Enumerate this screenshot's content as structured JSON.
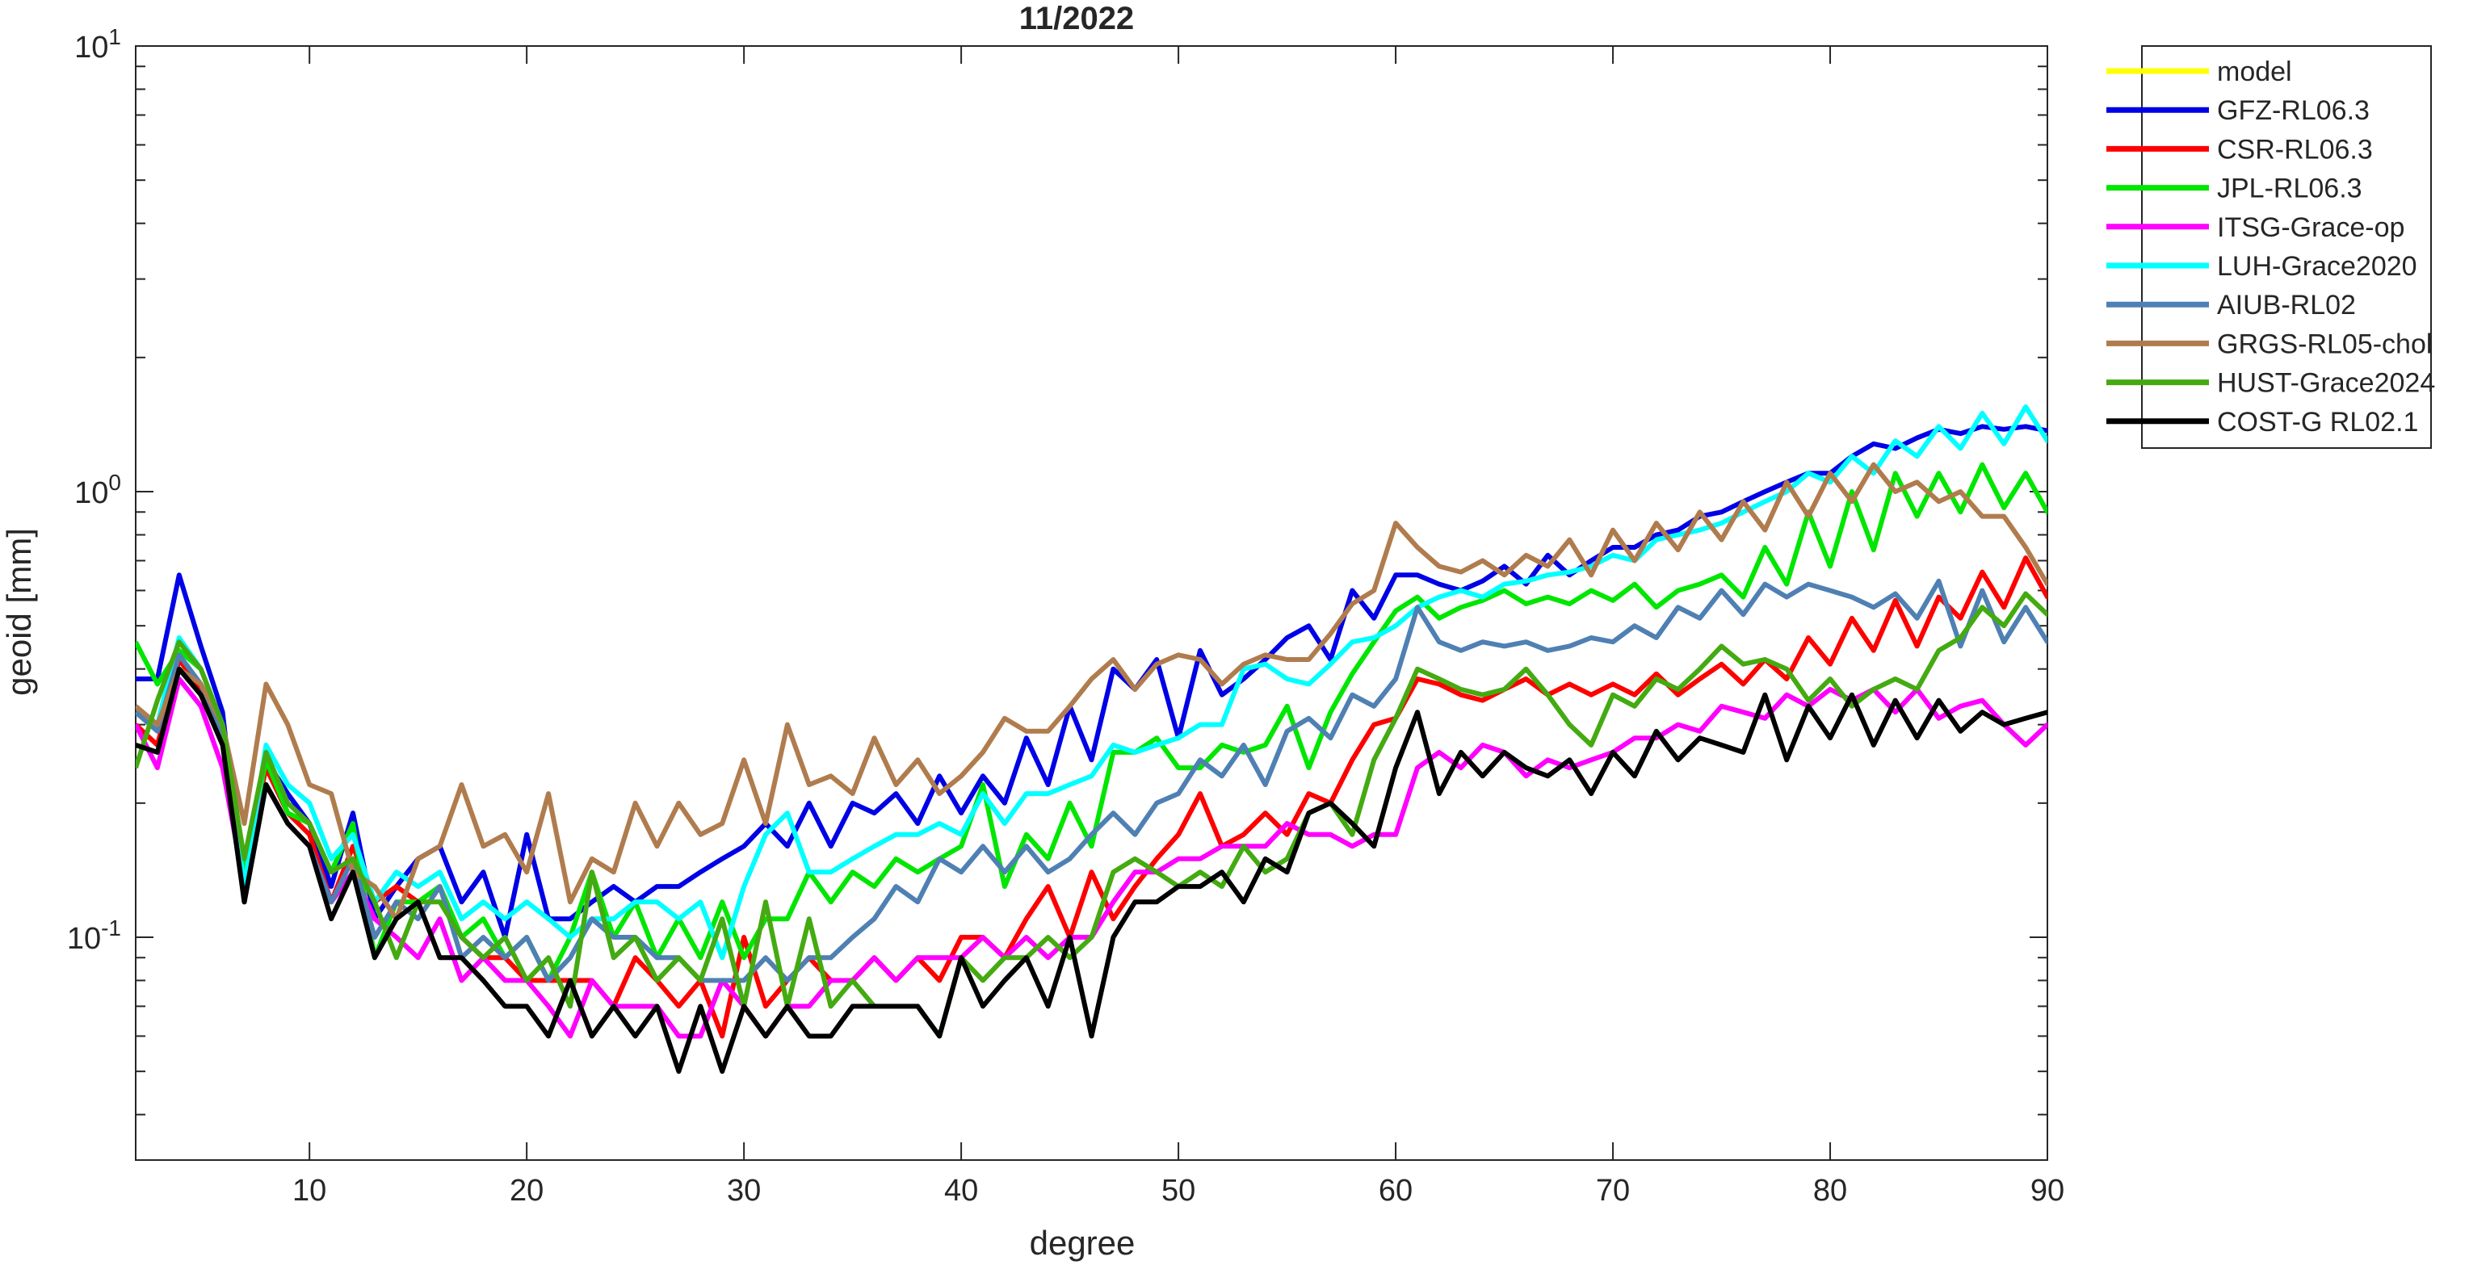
{
  "chart_data": {
    "type": "line",
    "title": "11/2022",
    "xlabel": "degree",
    "ylabel": "geoid [mm]",
    "xlim": [
      2,
      90
    ],
    "ylim": [
      0.03,
      10
    ],
    "yscale": "log",
    "grid": false,
    "legend_location": "outside-top-right",
    "x_ticks": [
      10,
      20,
      30,
      40,
      50,
      60,
      70,
      80,
      90
    ],
    "x_tick_labels": [
      "10",
      "20",
      "30",
      "40",
      "50",
      "60",
      "70",
      "80",
      "90"
    ],
    "y_tick_labels": [
      {
        "value": 0.1,
        "base": "10",
        "exp": "-1"
      },
      {
        "value": 1,
        "base": "10",
        "exp": "0"
      },
      {
        "value": 10,
        "base": "10",
        "exp": "1"
      }
    ],
    "x_start": 2,
    "series": [
      {
        "name": "model",
        "color": "#ffff00",
        "values": []
      },
      {
        "name": "GFZ-RL06.3",
        "color": "#0000e6",
        "values": [
          0.38,
          0.38,
          0.65,
          0.45,
          0.32,
          0.12,
          0.25,
          0.21,
          0.18,
          0.13,
          0.19,
          0.11,
          0.13,
          0.15,
          0.16,
          0.12,
          0.14,
          0.1,
          0.17,
          0.11,
          0.11,
          0.12,
          0.13,
          0.12,
          0.13,
          0.13,
          0.14,
          0.15,
          0.16,
          0.18,
          0.16,
          0.2,
          0.16,
          0.2,
          0.19,
          0.21,
          0.18,
          0.23,
          0.19,
          0.23,
          0.2,
          0.28,
          0.22,
          0.33,
          0.25,
          0.4,
          0.36,
          0.42,
          0.28,
          0.44,
          0.35,
          0.38,
          0.42,
          0.47,
          0.5,
          0.42,
          0.6,
          0.52,
          0.65,
          0.65,
          0.62,
          0.6,
          0.63,
          0.68,
          0.62,
          0.72,
          0.65,
          0.7,
          0.75,
          0.75,
          0.8,
          0.82,
          0.88,
          0.9,
          0.95,
          1.0,
          1.05,
          1.1,
          1.1,
          1.2,
          1.28,
          1.25,
          1.32,
          1.38,
          1.35,
          1.4,
          1.38,
          1.4,
          1.37
        ]
      },
      {
        "name": "CSR-RL06.3",
        "color": "#ff0000",
        "values": [
          0.3,
          0.27,
          0.42,
          0.36,
          0.28,
          0.14,
          0.24,
          0.19,
          0.17,
          0.12,
          0.16,
          0.12,
          0.13,
          0.12,
          0.13,
          0.1,
          0.09,
          0.09,
          0.08,
          0.08,
          0.08,
          0.08,
          0.07,
          0.09,
          0.08,
          0.07,
          0.08,
          0.06,
          0.1,
          0.07,
          0.08,
          0.09,
          0.08,
          0.08,
          0.09,
          0.08,
          0.09,
          0.08,
          0.1,
          0.1,
          0.09,
          0.11,
          0.13,
          0.1,
          0.14,
          0.11,
          0.13,
          0.15,
          0.17,
          0.21,
          0.16,
          0.17,
          0.19,
          0.17,
          0.21,
          0.2,
          0.25,
          0.3,
          0.31,
          0.38,
          0.37,
          0.35,
          0.34,
          0.36,
          0.38,
          0.35,
          0.37,
          0.35,
          0.37,
          0.35,
          0.39,
          0.35,
          0.38,
          0.41,
          0.37,
          0.42,
          0.38,
          0.47,
          0.41,
          0.52,
          0.44,
          0.57,
          0.45,
          0.58,
          0.52,
          0.66,
          0.55,
          0.71,
          0.58,
          0.76
        ]
      },
      {
        "name": "JPL-RL06.3",
        "color": "#00e600",
        "values": [
          0.46,
          0.37,
          0.44,
          0.4,
          0.3,
          0.14,
          0.25,
          0.19,
          0.18,
          0.14,
          0.18,
          0.09,
          0.12,
          0.12,
          0.13,
          0.1,
          0.11,
          0.09,
          0.1,
          0.08,
          0.1,
          0.14,
          0.1,
          0.12,
          0.09,
          0.11,
          0.09,
          0.12,
          0.09,
          0.11,
          0.11,
          0.14,
          0.12,
          0.14,
          0.13,
          0.15,
          0.14,
          0.15,
          0.16,
          0.22,
          0.13,
          0.17,
          0.15,
          0.2,
          0.16,
          0.26,
          0.26,
          0.28,
          0.24,
          0.24,
          0.27,
          0.26,
          0.27,
          0.33,
          0.24,
          0.32,
          0.39,
          0.46,
          0.54,
          0.58,
          0.52,
          0.55,
          0.57,
          0.6,
          0.56,
          0.58,
          0.56,
          0.6,
          0.57,
          0.62,
          0.55,
          0.6,
          0.62,
          0.65,
          0.58,
          0.75,
          0.62,
          0.9,
          0.68,
          1.0,
          0.74,
          1.1,
          0.88,
          1.1,
          0.9,
          1.15,
          0.92,
          1.1,
          0.9,
          1.1
        ]
      },
      {
        "name": "ITSG-Grace-op",
        "color": "#ff00ff",
        "values": [
          0.3,
          0.24,
          0.38,
          0.33,
          0.24,
          0.13,
          0.22,
          0.18,
          0.16,
          0.12,
          0.14,
          0.11,
          0.1,
          0.09,
          0.11,
          0.08,
          0.09,
          0.08,
          0.08,
          0.07,
          0.06,
          0.08,
          0.07,
          0.07,
          0.07,
          0.06,
          0.06,
          0.08,
          0.07,
          0.06,
          0.07,
          0.07,
          0.08,
          0.08,
          0.09,
          0.08,
          0.09,
          0.09,
          0.09,
          0.1,
          0.09,
          0.1,
          0.09,
          0.1,
          0.1,
          0.12,
          0.14,
          0.14,
          0.15,
          0.15,
          0.16,
          0.16,
          0.16,
          0.18,
          0.17,
          0.17,
          0.16,
          0.17,
          0.17,
          0.24,
          0.26,
          0.24,
          0.27,
          0.26,
          0.23,
          0.25,
          0.24,
          0.25,
          0.26,
          0.28,
          0.28,
          0.3,
          0.29,
          0.33,
          0.32,
          0.31,
          0.35,
          0.33,
          0.36,
          0.34,
          0.36,
          0.32,
          0.36,
          0.31,
          0.33,
          0.34,
          0.3,
          0.27,
          0.3,
          0.29
        ]
      },
      {
        "name": "LUH-Grace2020",
        "color": "#00ffff",
        "values": [
          0.33,
          0.3,
          0.47,
          0.4,
          0.3,
          0.13,
          0.27,
          0.22,
          0.2,
          0.15,
          0.17,
          0.12,
          0.14,
          0.13,
          0.14,
          0.11,
          0.12,
          0.11,
          0.12,
          0.11,
          0.1,
          0.11,
          0.11,
          0.12,
          0.12,
          0.11,
          0.12,
          0.09,
          0.13,
          0.17,
          0.19,
          0.14,
          0.14,
          0.15,
          0.16,
          0.17,
          0.17,
          0.18,
          0.17,
          0.21,
          0.18,
          0.21,
          0.21,
          0.22,
          0.23,
          0.27,
          0.26,
          0.27,
          0.28,
          0.3,
          0.3,
          0.4,
          0.41,
          0.38,
          0.37,
          0.41,
          0.46,
          0.47,
          0.5,
          0.55,
          0.58,
          0.6,
          0.58,
          0.62,
          0.63,
          0.65,
          0.66,
          0.68,
          0.72,
          0.7,
          0.78,
          0.8,
          0.82,
          0.85,
          0.9,
          0.95,
          1.0,
          1.1,
          1.05,
          1.2,
          1.1,
          1.3,
          1.2,
          1.4,
          1.25,
          1.5,
          1.28,
          1.55,
          1.3,
          1.6,
          1.45
        ]
      },
      {
        "name": "AIUB-RL02",
        "color": "#4f80b3",
        "values": [
          0.32,
          0.29,
          0.43,
          0.37,
          0.28,
          0.12,
          0.22,
          0.18,
          0.16,
          0.12,
          0.15,
          0.1,
          0.12,
          0.11,
          0.13,
          0.09,
          0.1,
          0.09,
          0.1,
          0.08,
          0.09,
          0.11,
          0.1,
          0.1,
          0.09,
          0.09,
          0.08,
          0.08,
          0.08,
          0.09,
          0.08,
          0.09,
          0.09,
          0.1,
          0.11,
          0.13,
          0.12,
          0.15,
          0.14,
          0.16,
          0.14,
          0.16,
          0.14,
          0.15,
          0.17,
          0.19,
          0.17,
          0.2,
          0.21,
          0.25,
          0.23,
          0.27,
          0.22,
          0.29,
          0.31,
          0.28,
          0.35,
          0.33,
          0.38,
          0.55,
          0.46,
          0.44,
          0.46,
          0.45,
          0.46,
          0.44,
          0.45,
          0.47,
          0.46,
          0.5,
          0.47,
          0.55,
          0.52,
          0.6,
          0.53,
          0.62,
          0.58,
          0.62,
          0.6,
          0.58,
          0.55,
          0.59,
          0.52,
          0.63,
          0.45,
          0.6,
          0.46,
          0.55,
          0.46,
          0.44,
          0.47
        ]
      },
      {
        "name": "GRGS-RL05-chol",
        "color": "#b07c4e",
        "values": [
          0.33,
          0.3,
          0.4,
          0.37,
          0.3,
          0.18,
          0.37,
          0.3,
          0.22,
          0.21,
          0.14,
          0.13,
          0.11,
          0.15,
          0.16,
          0.22,
          0.16,
          0.17,
          0.14,
          0.21,
          0.12,
          0.15,
          0.14,
          0.2,
          0.16,
          0.2,
          0.17,
          0.18,
          0.25,
          0.18,
          0.3,
          0.22,
          0.23,
          0.21,
          0.28,
          0.22,
          0.25,
          0.21,
          0.23,
          0.26,
          0.31,
          0.29,
          0.29,
          0.33,
          0.38,
          0.42,
          0.36,
          0.41,
          0.43,
          0.42,
          0.37,
          0.41,
          0.43,
          0.42,
          0.42,
          0.48,
          0.56,
          0.6,
          0.85,
          0.75,
          0.68,
          0.66,
          0.7,
          0.65,
          0.72,
          0.68,
          0.78,
          0.65,
          0.82,
          0.7,
          0.85,
          0.74,
          0.9,
          0.78,
          0.95,
          0.82,
          1.05,
          0.88,
          1.1,
          0.95,
          1.15,
          1.0,
          1.05,
          0.95,
          1.0,
          0.88,
          0.88,
          0.75,
          0.62,
          0.6
        ]
      },
      {
        "name": "HUST-Grace2024",
        "color": "#44aa11",
        "values": [
          0.24,
          0.34,
          0.46,
          0.4,
          0.3,
          0.15,
          0.26,
          0.2,
          0.18,
          0.14,
          0.15,
          0.12,
          0.09,
          0.12,
          0.12,
          0.1,
          0.09,
          0.1,
          0.08,
          0.09,
          0.07,
          0.14,
          0.09,
          0.1,
          0.08,
          0.09,
          0.08,
          0.11,
          0.07,
          0.12,
          0.07,
          0.11,
          0.07,
          0.08,
          0.07,
          0.07,
          0.07,
          0.06,
          0.09,
          0.08,
          0.09,
          0.09,
          0.1,
          0.09,
          0.1,
          0.14,
          0.15,
          0.14,
          0.13,
          0.14,
          0.13,
          0.16,
          0.14,
          0.15,
          0.19,
          0.2,
          0.17,
          0.25,
          0.31,
          0.4,
          0.38,
          0.36,
          0.35,
          0.36,
          0.4,
          0.35,
          0.3,
          0.27,
          0.35,
          0.33,
          0.38,
          0.36,
          0.4,
          0.45,
          0.41,
          0.42,
          0.4,
          0.34,
          0.38,
          0.33,
          0.36,
          0.38,
          0.36,
          0.44,
          0.47,
          0.55,
          0.5,
          0.59,
          0.53,
          0.6,
          0.57
        ]
      },
      {
        "name": "COST-G RL02.1",
        "color": "#000000",
        "values": [
          0.27,
          0.26,
          0.4,
          0.35,
          0.27,
          0.12,
          0.22,
          0.18,
          0.16,
          0.11,
          0.14,
          0.09,
          0.11,
          0.12,
          0.09,
          0.09,
          0.08,
          0.07,
          0.07,
          0.06,
          0.08,
          0.06,
          0.07,
          0.06,
          0.07,
          0.05,
          0.07,
          0.05,
          0.07,
          0.06,
          0.07,
          0.06,
          0.06,
          0.07,
          0.07,
          0.07,
          0.07,
          0.06,
          0.09,
          0.07,
          0.08,
          0.09,
          0.07,
          0.1,
          0.06,
          0.1,
          0.12,
          0.12,
          0.13,
          0.13,
          0.14,
          0.12,
          0.15,
          0.14,
          0.19,
          0.2,
          0.18,
          0.16,
          0.24,
          0.32,
          0.21,
          0.26,
          0.23,
          0.26,
          0.24,
          0.23,
          0.25,
          0.21,
          0.26,
          0.23,
          0.29,
          0.25,
          0.28,
          0.27,
          0.26,
          0.35,
          0.25,
          0.33,
          0.28,
          0.35,
          0.27,
          0.34,
          0.28,
          0.34,
          0.29,
          0.32,
          0.3,
          0.31,
          0.32,
          0.33
        ]
      }
    ]
  }
}
